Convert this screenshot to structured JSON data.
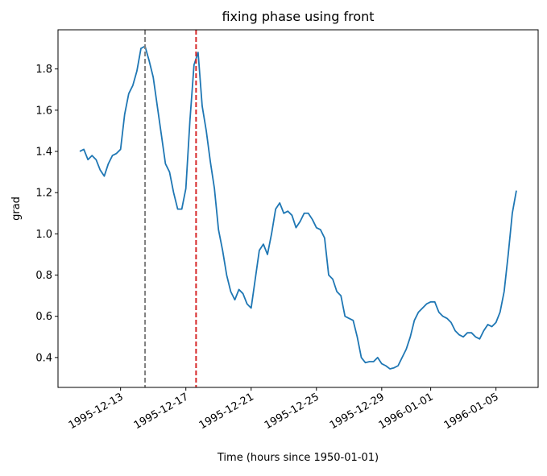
{
  "chart_data": {
    "type": "line",
    "title": "fixing phase using front",
    "xlabel": "Time (hours since 1950-01-01)",
    "ylabel": "grad",
    "x": [
      402708,
      402714,
      402720,
      402726,
      402732,
      402738,
      402744,
      402750,
      402756,
      402762,
      402768,
      402774,
      402780,
      402786,
      402792,
      402798,
      402804,
      402810,
      402816,
      402822,
      402828,
      402834,
      402840,
      402846,
      402852,
      402858,
      402864,
      402870,
      402876,
      402882,
      402888,
      402894,
      402900,
      402906,
      402912,
      402918,
      402924,
      402930,
      402936,
      402942,
      402948,
      402954,
      402960,
      402966,
      402972,
      402978,
      402984,
      402990,
      402996,
      403002,
      403008,
      403014,
      403020,
      403026,
      403032,
      403038,
      403044,
      403050,
      403056,
      403062,
      403068,
      403074,
      403080,
      403086,
      403092,
      403098,
      403104,
      403110,
      403116,
      403122,
      403128,
      403134,
      403140,
      403146,
      403152,
      403158,
      403164,
      403170,
      403176,
      403182,
      403188,
      403194,
      403200,
      403206,
      403212,
      403218,
      403224,
      403230,
      403236,
      403242,
      403248,
      403254,
      403260,
      403266,
      403272,
      403278,
      403284,
      403290,
      403296,
      403302,
      403308,
      403314,
      403320,
      403326,
      403332,
      403338,
      403344,
      403350
    ],
    "series": [
      {
        "color": "#1f77b4",
        "values": [
          1.4,
          1.41,
          1.36,
          1.38,
          1.36,
          1.31,
          1.28,
          1.34,
          1.38,
          1.39,
          1.41,
          1.58,
          1.68,
          1.72,
          1.79,
          1.9,
          1.91,
          1.84,
          1.76,
          1.62,
          1.48,
          1.34,
          1.3,
          1.2,
          1.12,
          1.12,
          1.22,
          1.55,
          1.82,
          1.88,
          1.62,
          1.5,
          1.35,
          1.22,
          1.02,
          0.92,
          0.8,
          0.72,
          0.68,
          0.73,
          0.71,
          0.66,
          0.64,
          0.78,
          0.92,
          0.95,
          0.9,
          1.0,
          1.12,
          1.15,
          1.1,
          1.11,
          1.09,
          1.03,
          1.06,
          1.1,
          1.1,
          1.07,
          1.03,
          1.02,
          0.98,
          0.8,
          0.78,
          0.72,
          0.7,
          0.6,
          0.59,
          0.58,
          0.5,
          0.4,
          0.375,
          0.38,
          0.38,
          0.4,
          0.37,
          0.36,
          0.345,
          0.35,
          0.36,
          0.4,
          0.44,
          0.5,
          0.58,
          0.62,
          0.64,
          0.66,
          0.67,
          0.67,
          0.62,
          0.6,
          0.59,
          0.57,
          0.53,
          0.51,
          0.5,
          0.52,
          0.52,
          0.5,
          0.49,
          0.53,
          0.56,
          0.55,
          0.57,
          0.62,
          0.72,
          0.9,
          1.1,
          1.21
        ]
      }
    ],
    "vlines": [
      {
        "x": 402804,
        "color": "#808080"
      },
      {
        "x": 402879,
        "color": "#d62728"
      }
    ],
    "xlim": [
      402676,
      403382
    ],
    "xticks": [
      {
        "value": 402768,
        "label": "1995-12-13"
      },
      {
        "value": 402864,
        "label": "1995-12-17"
      },
      {
        "value": 402960,
        "label": "1995-12-21"
      },
      {
        "value": 403056,
        "label": "1995-12-25"
      },
      {
        "value": 403152,
        "label": "1995-12-29"
      },
      {
        "value": 403224,
        "label": "1996-01-01"
      },
      {
        "value": 403320,
        "label": "1996-01-05"
      }
    ],
    "ylim": [
      0.255,
      1.99
    ],
    "yticks": [
      0.4,
      0.6,
      0.8,
      {
        "value": 1,
        "label": "1.0"
      },
      1.2,
      1.4,
      1.6,
      1.8
    ]
  }
}
